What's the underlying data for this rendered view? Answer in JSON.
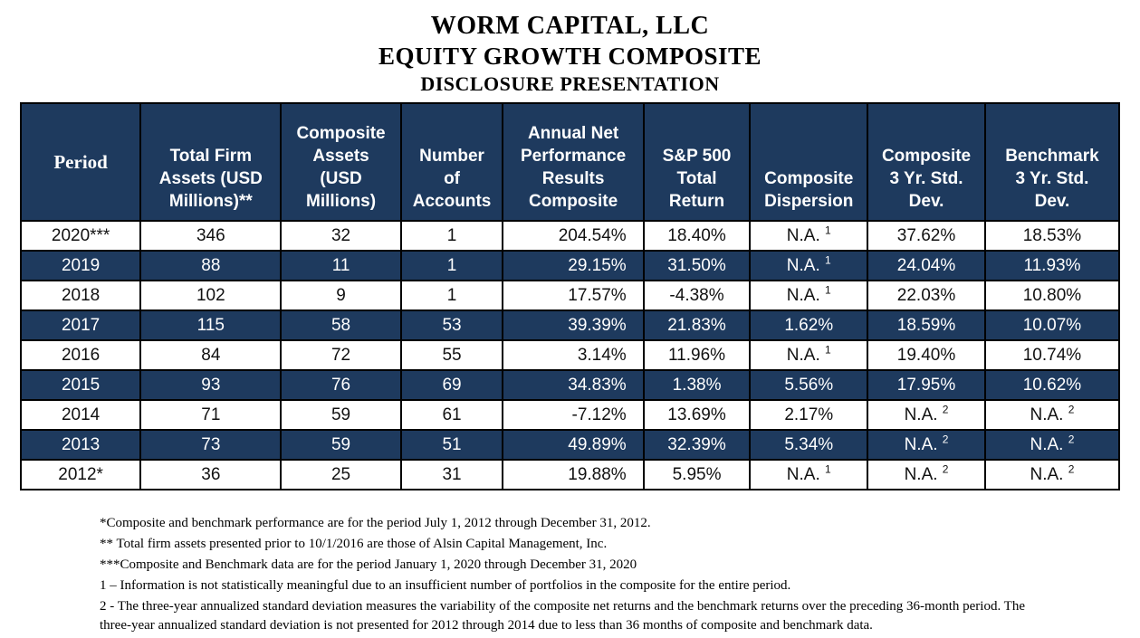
{
  "page": {
    "title_line1": "WORM CAPITAL, LLC",
    "title_line2": "EQUITY GROWTH COMPOSITE",
    "title_line3": "DISCLOSURE PRESENTATION"
  },
  "colors": {
    "navy": "#1e3a5e",
    "row_white": "#ffffff",
    "header_text": "#ffffff",
    "body_text": "#111111"
  },
  "table": {
    "columns": [
      "Period",
      "Total Firm\nAssets (USD\nMillions)**",
      "Composite\nAssets\n(USD\nMillions)",
      "Number\nof\nAccounts",
      "Annual Net\nPerformance\nResults\nComposite",
      "S&P 500\nTotal\nReturn",
      "Composite\nDispersion",
      "Composite\n3 Yr. Std.\nDev.",
      "Benchmark\n3 Yr. Std.\nDev."
    ],
    "rows": [
      [
        "2020***",
        "346",
        "32",
        "1",
        "204.54%",
        "18.40%",
        "N.A. ^1",
        "37.62%",
        "18.53%"
      ],
      [
        "2019",
        "88",
        "11",
        "1",
        "29.15%",
        "31.50%",
        "N.A. ^1",
        "24.04%",
        "11.93%"
      ],
      [
        "2018",
        "102",
        "9",
        "1",
        "17.57%",
        "-4.38%",
        "N.A. ^1",
        "22.03%",
        "10.80%"
      ],
      [
        "2017",
        "115",
        "58",
        "53",
        "39.39%",
        "21.83%",
        "1.62%",
        "18.59%",
        "10.07%"
      ],
      [
        "2016",
        "84",
        "72",
        "55",
        "3.14%",
        "11.96%",
        "N.A. ^1",
        "19.40%",
        "10.74%"
      ],
      [
        "2015",
        "93",
        "76",
        "69",
        "34.83%",
        "1.38%",
        "5.56%",
        "17.95%",
        "10.62%"
      ],
      [
        "2014",
        "71",
        "59",
        "61",
        "-7.12%",
        "13.69%",
        "2.17%",
        "N.A. ^2",
        "N.A. ^2"
      ],
      [
        "2013",
        "73",
        "59",
        "51",
        "49.89%",
        "32.39%",
        "5.34%",
        "N.A. ^2",
        "N.A. ^2"
      ],
      [
        "2012*",
        "36",
        "25",
        "31",
        "19.88%",
        "5.95%",
        "N.A. ^1",
        "N.A. ^2",
        "N.A. ^2"
      ]
    ]
  },
  "footnotes": [
    "*Composite and benchmark performance are for the period July 1, 2012 through December 31, 2012.",
    "** Total firm assets presented prior to 10/1/2016 are those of Alsin Capital Management, Inc.",
    "***Composite and Benchmark data are for the period January 1, 2020 through December 31, 2020",
    "1 – Information is not statistically meaningful due to an insufficient number of portfolios in the composite for the entire period.",
    "2 - The three-year annualized standard deviation measures the variability of the composite net returns and the benchmark returns over the preceding 36-month period. The three-year annualized standard deviation is not presented for 2012 through 2014 due to less than 36 months of composite and benchmark data."
  ]
}
